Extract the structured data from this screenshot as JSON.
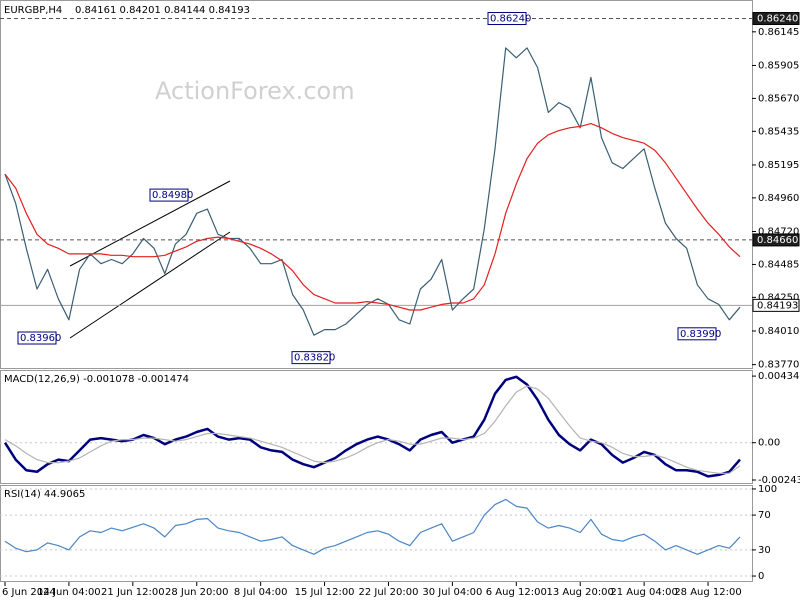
{
  "chart_data": [
    {
      "type": "line",
      "title": "EURGBP,H4",
      "subtitle": "0.84161 0.84201 0.84144 0.84193",
      "watermark": "ActionForex.com",
      "categories": [
        "6 Jun 2024",
        null,
        null,
        null,
        null,
        null,
        "14 Jun 04:00",
        null,
        null,
        null,
        null,
        null,
        "21 Jun 12:00",
        null,
        null,
        null,
        null,
        null,
        "28 Jun 20:00",
        null,
        null,
        null,
        null,
        null,
        "8 Jul 04:00",
        null,
        null,
        null,
        null,
        null,
        "15 Jul 12:00",
        null,
        null,
        null,
        null,
        null,
        "22 Jul 20:00",
        null,
        null,
        null,
        null,
        null,
        "30 Jul 04:00",
        null,
        null,
        null,
        null,
        null,
        "6 Aug 12:00",
        null,
        null,
        null,
        null,
        null,
        "13 Aug 20:00",
        null,
        null,
        null,
        null,
        null,
        "21 Aug 04:00",
        null,
        null,
        null,
        null,
        null,
        "28 Aug 12:00",
        null,
        null,
        null
      ],
      "series": [
        {
          "name": "EURGBP",
          "color": "#3a5f73",
          "values": [
            0.8513,
            0.8492,
            0.846,
            0.8431,
            0.8445,
            0.8424,
            0.8409,
            0.8445,
            0.8456,
            0.8449,
            0.8452,
            0.8449,
            0.8456,
            0.8467,
            0.846,
            0.8442,
            0.8463,
            0.847,
            0.8485,
            0.8488,
            0.847,
            0.8467,
            0.8467,
            0.846,
            0.8449,
            0.8449,
            0.8452,
            0.8427,
            0.8416,
            0.8398,
            0.8402,
            0.8402,
            0.8406,
            0.8413,
            0.842,
            0.8424,
            0.842,
            0.8409,
            0.8406,
            0.8431,
            0.8438,
            0.8452,
            0.8416,
            0.8424,
            0.8431,
            0.8474,
            0.8531,
            0.8603,
            0.8596,
            0.8603,
            0.8589,
            0.8557,
            0.8564,
            0.856,
            0.8546,
            0.8582,
            0.8539,
            0.8521,
            0.8517,
            0.8524,
            0.8531,
            0.8503,
            0.8478,
            0.8467,
            0.846,
            0.8434,
            0.8424,
            0.842,
            0.8409,
            0.8418
          ]
        },
        {
          "name": "MA",
          "color": "#e02020",
          "values": [
            0.8513,
            0.8503,
            0.8485,
            0.847,
            0.8463,
            0.846,
            0.8456,
            0.8456,
            0.8456,
            0.8456,
            0.8455,
            0.8455,
            0.8454,
            0.8454,
            0.8454,
            0.8455,
            0.8458,
            0.8461,
            0.8465,
            0.8467,
            0.8468,
            0.8467,
            0.8465,
            0.8463,
            0.846,
            0.8456,
            0.8451,
            0.8444,
            0.8434,
            0.8427,
            0.8424,
            0.8421,
            0.8421,
            0.8421,
            0.8422,
            0.8421,
            0.842,
            0.8418,
            0.8416,
            0.8416,
            0.8418,
            0.842,
            0.8421,
            0.8421,
            0.8424,
            0.8434,
            0.8456,
            0.8485,
            0.8506,
            0.8524,
            0.8535,
            0.8541,
            0.8544,
            0.8546,
            0.8547,
            0.8549,
            0.8546,
            0.8542,
            0.8539,
            0.8537,
            0.8535,
            0.853,
            0.8521,
            0.851,
            0.8499,
            0.8488,
            0.8478,
            0.847,
            0.8461,
            0.8454
          ]
        }
      ],
      "ylim": [
        0.83746,
        0.86365
      ],
      "yticks": [
        0.86145,
        0.85905,
        {
          "value": 0.8567,
          "label": "0.85670"
        },
        0.85435,
        0.85195,
        {
          "value": 0.8496,
          "label": "0.84960"
        },
        {
          "value": 0.8472,
          "label": "0.84720"
        },
        0.84485,
        {
          "value": 0.8425,
          "label": "0.84250"
        },
        {
          "value": 0.8401,
          "label": "0.84010"
        },
        {
          "value": 0.8377,
          "label": "0.83770"
        }
      ],
      "hlines": [
        {
          "value": 0.8624,
          "label": "0.86240",
          "style": "dashed"
        },
        {
          "value": 0.8466,
          "label": "0.84660",
          "style": "dashed"
        },
        {
          "value": 0.84193,
          "label": "0.84193",
          "style": "solid"
        }
      ],
      "annotations": [
        {
          "value": 0.8624,
          "label": "0.86240"
        },
        {
          "value": 0.8498,
          "label": "0.84980"
        },
        {
          "value": 0.8396,
          "label": "0.83960"
        },
        {
          "value": 0.8382,
          "label": "0.83820"
        },
        {
          "value": 0.8399,
          "label": "0.83990"
        }
      ]
    },
    {
      "type": "line",
      "title": "MACD(12,26,9) -0.001078 -0.001474",
      "series": [
        {
          "name": "MACD",
          "color": "#00007f",
          "values": [
            0,
            -0.0011,
            -0.0018,
            -0.0019,
            -0.0014,
            -0.0011,
            -0.0012,
            -0.0005,
            0.0002,
            0.0003,
            0.0002,
            0.0001,
            0.0002,
            0.0005,
            0.0003,
            -0.0001,
            0.0002,
            0.0004,
            0.0007,
            0.0009,
            0.0004,
            0.0002,
            0.0003,
            0.0002,
            -0.0003,
            -0.0005,
            -0.0006,
            -0.0011,
            -0.0014,
            -0.0016,
            -0.0013,
            -0.001,
            -0.0005,
            -0.0001,
            0.0002,
            0.0004,
            0.0002,
            -0.0001,
            -0.0005,
            0.0002,
            0.0005,
            0.0007,
            0,
            0.0002,
            0.0004,
            0.0015,
            0.0032,
            0.0041,
            0.0043,
            0.0038,
            0.0028,
            0.0015,
            0.0005,
            -0.0001,
            -0.0005,
            0.0002,
            -0.0001,
            -0.0008,
            -0.0013,
            -0.001,
            -0.0006,
            -0.0008,
            -0.0014,
            -0.0018,
            -0.0018,
            -0.0019,
            -0.0022,
            -0.0021,
            -0.0019,
            -0.0011
          ]
        },
        {
          "name": "Signal",
          "color": "#b4b4b4",
          "values": [
            0.0002,
            -0.0002,
            -0.0007,
            -0.0011,
            -0.0013,
            -0.0013,
            -0.0012,
            -0.001,
            -0.0006,
            -0.0002,
            0.0001,
            0.0002,
            0.0002,
            0.0003,
            0.0003,
            0.0002,
            0.0001,
            0.0002,
            0.0004,
            0.0006,
            0.0006,
            0.0005,
            0.0004,
            0.0003,
            0.0001,
            -0.0001,
            -0.0003,
            -0.0006,
            -0.0009,
            -0.0012,
            -0.0013,
            -0.0012,
            -0.001,
            -0.0007,
            -0.0003,
            0,
            0.0002,
            0.0001,
            -0.0001,
            -0.0001,
            0.0001,
            0.0003,
            0.0003,
            0.0002,
            0.0003,
            0.0006,
            0.0014,
            0.0024,
            0.0033,
            0.0037,
            0.0035,
            0.0029,
            0.002,
            0.0011,
            0.0003,
            0.0001,
            0,
            -0.0003,
            -0.0007,
            -0.0009,
            -0.0009,
            -0.0008,
            -0.001,
            -0.0013,
            -0.0016,
            -0.0018,
            -0.0019,
            -0.002,
            -0.002,
            -0.0015
          ]
        }
      ],
      "ylim": [
        -0.00263,
        0.00468
      ],
      "yticks": [
        0.004347,
        {
          "value": 0,
          "label": "0.00"
        },
        -0.002434
      ]
    },
    {
      "type": "line",
      "title": "RSI(14) 44.9065",
      "series": [
        {
          "name": "RSI",
          "color": "#4a86c5",
          "values": [
            40,
            32,
            28,
            30,
            38,
            35,
            30,
            45,
            52,
            50,
            55,
            52,
            56,
            60,
            55,
            45,
            58,
            60,
            65,
            66,
            55,
            52,
            50,
            45,
            40,
            42,
            45,
            35,
            30,
            25,
            32,
            35,
            40,
            45,
            50,
            52,
            48,
            40,
            35,
            50,
            55,
            60,
            40,
            45,
            50,
            70,
            82,
            88,
            80,
            78,
            62,
            55,
            58,
            55,
            50,
            65,
            48,
            42,
            40,
            45,
            48,
            40,
            30,
            35,
            30,
            25,
            30,
            35,
            32,
            45
          ]
        }
      ],
      "ylim": [
        -5.7,
        103.4
      ],
      "yticks": [
        100,
        70,
        30,
        0
      ]
    }
  ]
}
